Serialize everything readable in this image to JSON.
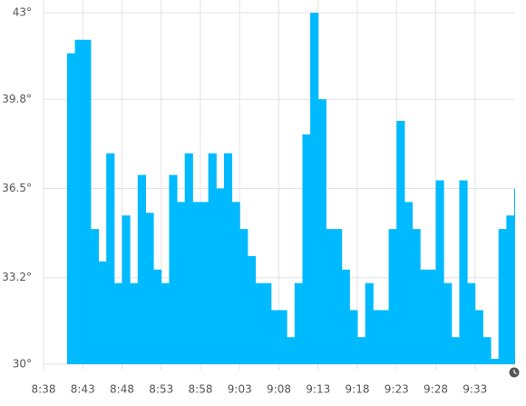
{
  "chart_data": {
    "type": "step-area",
    "color": "#00baff",
    "grid": true,
    "x": [
      "8:41",
      "8:42",
      "8:43",
      "8:44",
      "8:45",
      "8:46",
      "8:47",
      "8:48",
      "8:49",
      "8:50",
      "8:51",
      "8:52",
      "8:53",
      "8:54",
      "8:55",
      "8:56",
      "8:57",
      "8:58",
      "8:59",
      "9:00",
      "9:01",
      "9:02",
      "9:03",
      "9:04",
      "9:05",
      "9:06",
      "9:07",
      "9:08",
      "9:09",
      "9:10",
      "9:11",
      "9:12",
      "9:13",
      "9:14",
      "9:15",
      "9:16",
      "9:17",
      "9:18",
      "9:19",
      "9:20",
      "9:21",
      "9:22",
      "9:23",
      "9:24",
      "9:25",
      "9:26",
      "9:27",
      "9:28",
      "9:29",
      "9:30",
      "9:31",
      "9:32",
      "9:33",
      "9:34",
      "9:35",
      "9:36",
      "9:37",
      "9:38"
    ],
    "values": [
      41.5,
      42,
      42,
      35,
      33.8,
      37.8,
      33,
      35.5,
      33,
      37,
      35.6,
      33.5,
      33,
      37,
      36,
      37.8,
      36,
      36,
      37.8,
      36.5,
      37.8,
      36,
      35,
      34,
      33,
      33,
      32,
      32,
      31,
      33,
      38.5,
      43,
      39.8,
      35,
      35,
      33.5,
      32,
      31,
      33,
      32,
      32,
      35,
      39,
      36,
      35,
      33.5,
      33.5,
      36.8,
      33,
      31,
      36.8,
      33,
      32,
      31,
      30.2,
      35,
      35.5,
      36.5
    ],
    "xlim": [
      "8:38",
      "9:38"
    ],
    "xticks": [
      "8:38",
      "8:43",
      "8:48",
      "8:53",
      "8:58",
      "9:03",
      "9:08",
      "9:13",
      "9:18",
      "9:23",
      "9:28",
      "9:33"
    ],
    "ylim": [
      30,
      43
    ],
    "yticks": [
      {
        "value": 30,
        "label": "30°"
      },
      {
        "value": 33.2,
        "label": "33.2°"
      },
      {
        "value": 36.5,
        "label": "36.5°"
      },
      {
        "value": 39.8,
        "label": "39.8°"
      },
      {
        "value": 43,
        "label": "43°"
      }
    ]
  }
}
